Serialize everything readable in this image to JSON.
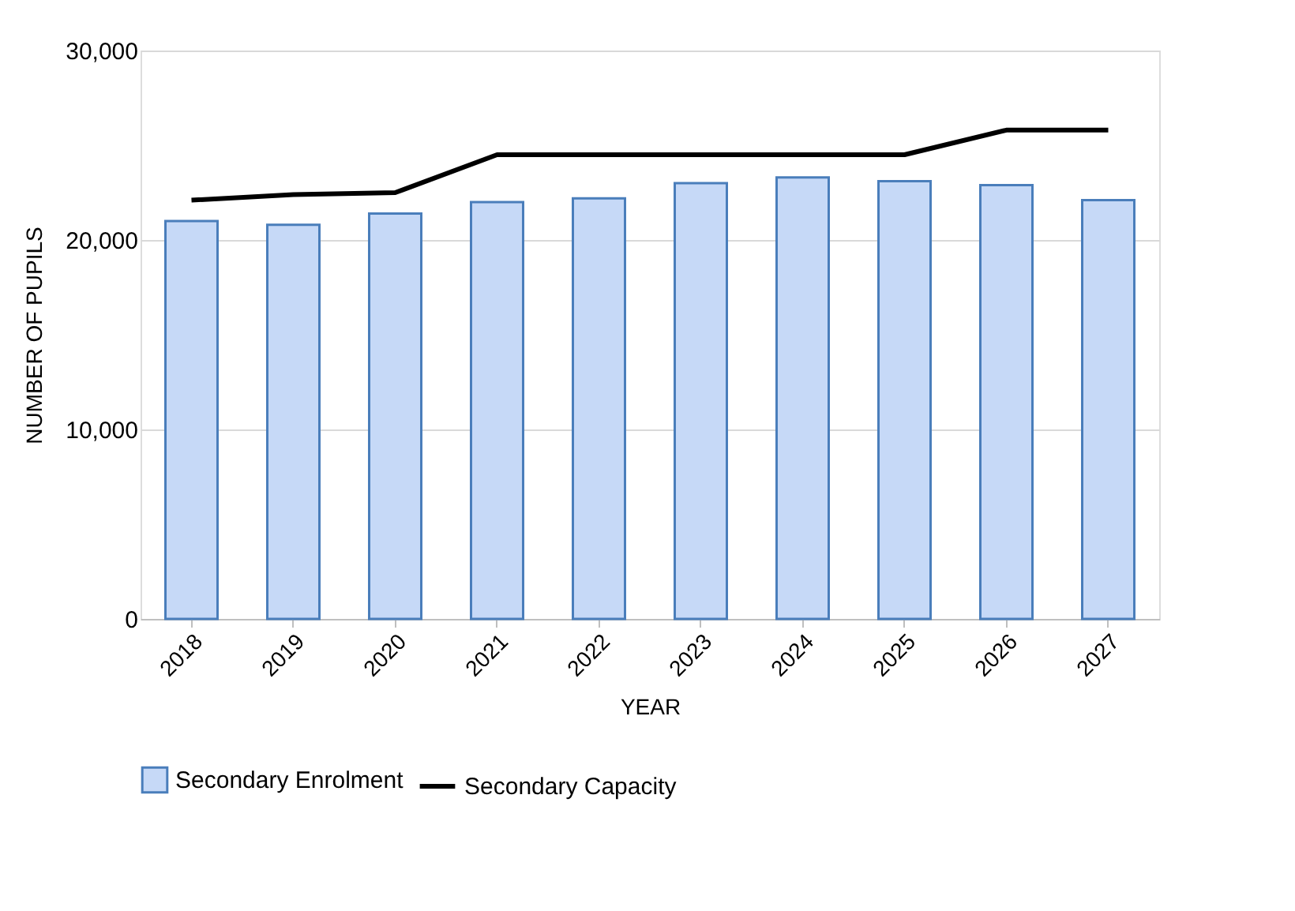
{
  "chart_data": {
    "type": "bar",
    "xlabel": "YEAR",
    "ylabel": "NUMBER OF PUPILS",
    "categories": [
      "2018",
      "2019",
      "2020",
      "2021",
      "2022",
      "2023",
      "2024",
      "2025",
      "2026",
      "2027"
    ],
    "series": [
      {
        "name": "Secondary Enrolment",
        "color": "#c6d9f7",
        "values": [
          21000,
          20800,
          21400,
          22000,
          22200,
          23000,
          23300,
          23100,
          22900,
          22100
        ]
      },
      {
        "name": "Secondary Capacity",
        "type": "line",
        "color": "#000000",
        "values": [
          22100,
          22400,
          22500,
          24500,
          24500,
          24500,
          24500,
          24500,
          25800,
          25800
        ]
      }
    ],
    "ylim": [
      0,
      30000
    ],
    "yticks": [
      0,
      {
        "value": 10000,
        "label": "10,000"
      },
      {
        "value": 20000,
        "label": "20,000"
      },
      {
        "value": 30000,
        "label": "30,000"
      }
    ],
    "grid": "y",
    "legend": "bottom"
  }
}
